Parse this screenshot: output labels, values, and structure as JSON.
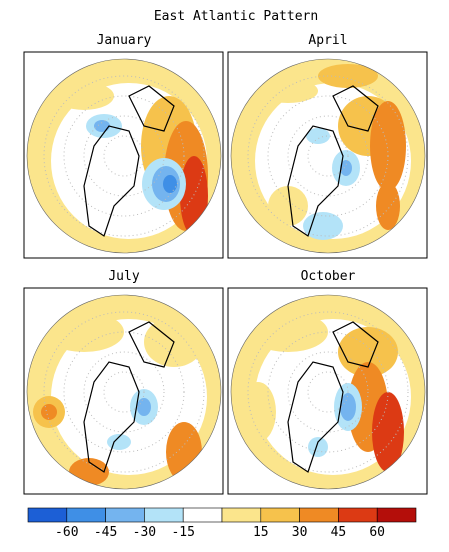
{
  "title": "East Atlantic Pattern",
  "panels": [
    "January",
    "April",
    "July",
    "October"
  ],
  "colorbar": {
    "colors": [
      "#1c5fd6",
      "#3f8fe6",
      "#74b4ef",
      "#b3e3f8",
      "#ffffff",
      "#fbe58c",
      "#f6c24c",
      "#ef8a24",
      "#dc3a14",
      "#b40e0a"
    ],
    "labels": [
      -60,
      -45,
      -30,
      -15,
      15,
      30,
      45,
      60
    ]
  }
}
